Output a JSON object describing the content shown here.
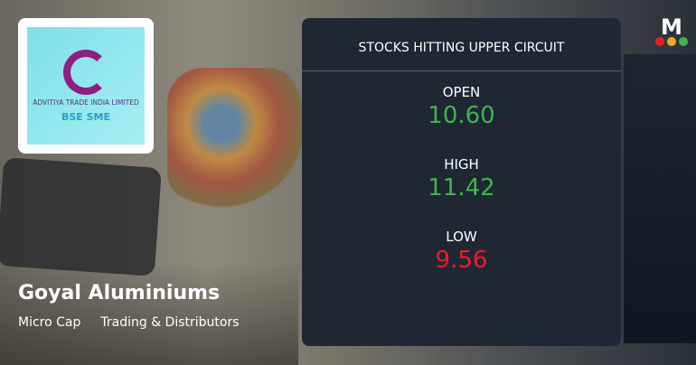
{
  "logo": {
    "company_text": "ADVITIYA TRADE INDIA LIMITED",
    "exchange_text": "BSE SME"
  },
  "company": {
    "name": "Goyal Aluminiums",
    "tags": [
      "Micro Cap",
      "Trading & Distributors"
    ]
  },
  "panel": {
    "title": "STOCKS HITTING UPPER CIRCUIT",
    "stats": [
      {
        "label": "OPEN",
        "value": "10.60",
        "color": "#3fb54a"
      },
      {
        "label": "HIGH",
        "value": "11.42",
        "color": "#3fb54a"
      },
      {
        "label": "LOW",
        "value": "9.56",
        "color": "#ee1c25"
      }
    ]
  },
  "brand": {
    "letter": "M",
    "dots": [
      "#ee1c25",
      "#f5a623",
      "#3fb54a"
    ]
  }
}
